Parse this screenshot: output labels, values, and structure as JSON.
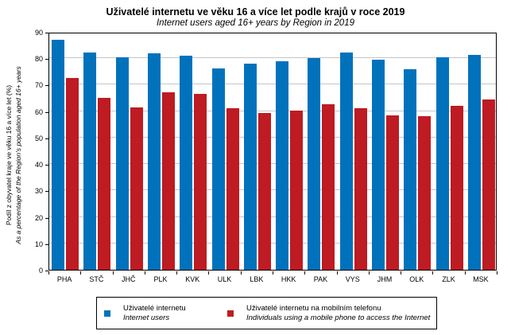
{
  "title": "Uživatelé internetu ve věku 16 a více let podle krajů v roce 2019",
  "subtitle": "Internet users aged 16+ years by Region in 2019",
  "y_axis": {
    "label_cs": "Podíl z obyvatel kraje ve věku 16 a více let (%)",
    "label_en": "As a percentage of the Region's population aged 16+ years",
    "min": 0,
    "max": 90,
    "step": 10
  },
  "legend": [
    {
      "label_cs": "Uživatelé internetu",
      "label_en": "Internet users",
      "color": "#0072BC"
    },
    {
      "label_cs": "Uživatelé internetu na mobilním  telefonu",
      "label_en": "Individuals using a mobile phone to access the Internet",
      "color": "#BE1B22"
    }
  ],
  "chart_data": {
    "type": "bar",
    "categories": [
      "PHA",
      "STČ",
      "JHČ",
      "PLK",
      "KVK",
      "ULK",
      "LBK",
      "HKK",
      "PAK",
      "VYS",
      "JHM",
      "OLK",
      "ZLK",
      "MSK"
    ],
    "series": [
      {
        "name": "Uživatelé internetu / Internet users",
        "color": "#0072BC",
        "values": [
          87.0,
          82.2,
          80.3,
          81.9,
          81.0,
          76.2,
          77.9,
          78.8,
          80.2,
          82.2,
          79.4,
          75.8,
          80.5,
          81.3
        ]
      },
      {
        "name": "Uživatelé internetu na mobilním telefonu / Individuals using a mobile phone to access the Internet",
        "color": "#BE1B22",
        "values": [
          72.5,
          65.0,
          61.5,
          67.1,
          66.5,
          61.2,
          59.4,
          60.3,
          62.5,
          61.0,
          58.4,
          58.0,
          62.0,
          64.4
        ]
      }
    ],
    "title": "Uživatelé internetu ve věku 16 a více let podle krajů v roce 2019",
    "xlabel": "",
    "ylabel": "Podíl z obyvatel kraje ve věku 16 a více let (%)",
    "ylim": [
      0,
      90
    ],
    "grid": true,
    "legend_position": "bottom"
  }
}
